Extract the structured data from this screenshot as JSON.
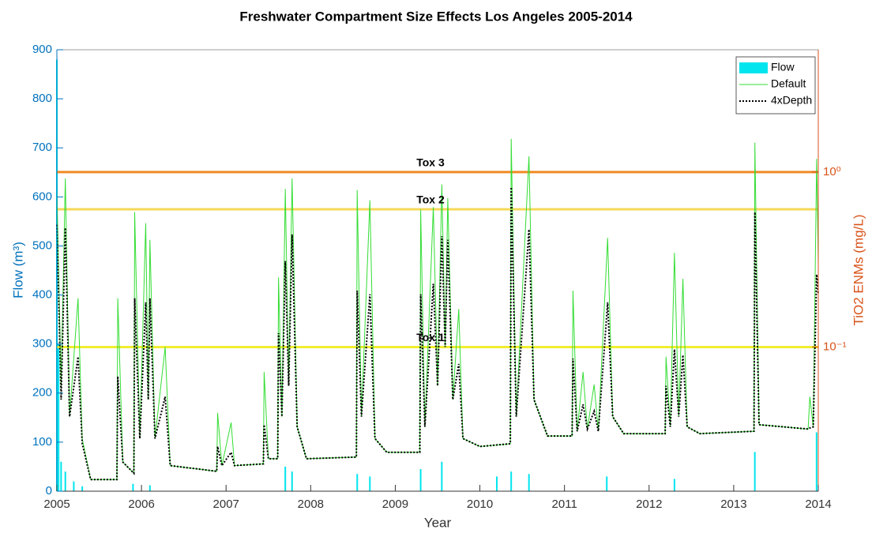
{
  "chart_data": {
    "type": "line",
    "title": "Freshwater Compartment Size Effects Los Angeles 2005-2014",
    "xlabel": "Year",
    "ylabel": "Flow (m³)",
    "y2label": "TiO2 ENMs (mg/L)",
    "xlim": [
      2005,
      2014
    ],
    "xticks": [
      2005,
      2006,
      2007,
      2008,
      2009,
      2010,
      2011,
      2012,
      2013,
      2014
    ],
    "ylim": [
      0,
      900
    ],
    "yticks": [
      0,
      100,
      200,
      300,
      400,
      500,
      600,
      700,
      800,
      900
    ],
    "y2lim": [
      0.015,
      5
    ],
    "y2ticks": [
      {
        "value": 0.1,
        "label": "10⁻¹"
      },
      {
        "value": 1,
        "label": "10⁰"
      }
    ],
    "y2log": true,
    "legend": "northeast",
    "x": [
      2005.0,
      2005.05,
      2005.1,
      2005.15,
      2005.25,
      2005.3,
      2005.4,
      2005.71,
      2005.72,
      2005.78,
      2005.91,
      2005.92,
      2005.98,
      2006.05,
      2006.08,
      2006.1,
      2006.16,
      2006.28,
      2006.34,
      2006.89,
      2006.9,
      2006.95,
      2007.06,
      2007.1,
      2007.44,
      2007.45,
      2007.5,
      2007.61,
      2007.62,
      2007.66,
      2007.7,
      2007.74,
      2007.78,
      2007.84,
      2007.95,
      2008.54,
      2008.55,
      2008.6,
      2008.7,
      2008.76,
      2008.9,
      2009.29,
      2009.3,
      2009.35,
      2009.45,
      2009.5,
      2009.55,
      2009.59,
      2009.62,
      2009.68,
      2009.75,
      2009.8,
      2010.0,
      2010.36,
      2010.37,
      2010.43,
      2010.58,
      2010.64,
      2010.8,
      2011.09,
      2011.1,
      2011.15,
      2011.22,
      2011.27,
      2011.35,
      2011.4,
      2011.51,
      2011.57,
      2011.7,
      2012.19,
      2012.2,
      2012.25,
      2012.3,
      2012.35,
      2012.4,
      2012.45,
      2012.6,
      2013.24,
      2013.25,
      2013.3,
      2013.88,
      2013.9,
      2013.94,
      2013.98,
      2014.0
    ],
    "series": [
      {
        "name": "Flow",
        "color": "#00e5ee",
        "axis": "y",
        "type": "bar",
        "x": [
          2005.0,
          2005.02,
          2005.05,
          2005.1,
          2005.2,
          2005.3,
          2005.9,
          2006.1,
          2007.7,
          2007.78,
          2008.55,
          2008.7,
          2009.3,
          2009.55,
          2010.2,
          2010.37,
          2010.58,
          2011.5,
          2012.3,
          2013.25,
          2013.98
        ],
        "values": [
          880,
          300,
          60,
          40,
          20,
          10,
          15,
          12,
          50,
          40,
          35,
          30,
          45,
          60,
          30,
          40,
          35,
          30,
          25,
          80,
          120
        ]
      },
      {
        "name": "Default",
        "color": "#33dd33",
        "axis": "y2",
        "values": [
          0.8,
          0.06,
          0.92,
          0.04,
          0.19,
          0.03,
          0.0175,
          0.0175,
          0.19,
          0.022,
          0.019,
          0.59,
          0.03,
          0.51,
          0.05,
          0.41,
          0.03,
          0.1,
          0.021,
          0.0195,
          0.042,
          0.021,
          0.037,
          0.021,
          0.0215,
          0.072,
          0.023,
          0.023,
          0.25,
          0.04,
          0.8,
          0.06,
          0.92,
          0.035,
          0.023,
          0.0235,
          0.79,
          0.04,
          0.69,
          0.03,
          0.025,
          0.025,
          0.61,
          0.035,
          0.63,
          0.06,
          0.85,
          0.1,
          0.71,
          0.05,
          0.165,
          0.03,
          0.027,
          0.028,
          1.55,
          0.04,
          1.23,
          0.05,
          0.031,
          0.031,
          0.21,
          0.033,
          0.072,
          0.034,
          0.061,
          0.033,
          0.42,
          0.04,
          0.032,
          0.032,
          0.088,
          0.035,
          0.345,
          0.04,
          0.245,
          0.035,
          0.032,
          0.033,
          1.47,
          0.036,
          0.034,
          0.052,
          0.035,
          1.19,
          0.3
        ]
      },
      {
        "name": "4xDepth",
        "color": "#000000",
        "axis": "y2",
        "dash": "dotted",
        "values": [
          0.5,
          0.05,
          0.48,
          0.04,
          0.088,
          0.028,
          0.0175,
          0.0175,
          0.068,
          0.022,
          0.019,
          0.19,
          0.03,
          0.18,
          0.05,
          0.19,
          0.03,
          0.052,
          0.021,
          0.0195,
          0.027,
          0.021,
          0.025,
          0.021,
          0.0215,
          0.036,
          0.023,
          0.023,
          0.12,
          0.04,
          0.31,
          0.06,
          0.44,
          0.035,
          0.023,
          0.0235,
          0.21,
          0.04,
          0.2,
          0.03,
          0.025,
          0.025,
          0.2,
          0.035,
          0.23,
          0.06,
          0.43,
          0.1,
          0.41,
          0.05,
          0.08,
          0.03,
          0.027,
          0.028,
          0.82,
          0.04,
          0.47,
          0.05,
          0.031,
          0.031,
          0.086,
          0.033,
          0.047,
          0.034,
          0.043,
          0.033,
          0.18,
          0.04,
          0.032,
          0.032,
          0.06,
          0.035,
          0.097,
          0.04,
          0.09,
          0.035,
          0.032,
          0.033,
          0.59,
          0.036,
          0.034,
          0.0345,
          0.035,
          0.26,
          0.2
        ]
      }
    ],
    "reference_lines": [
      {
        "label": "Tox 3",
        "value": 1.0,
        "color": "#f08a24"
      },
      {
        "label": "Tox 2",
        "value": 0.613,
        "color": "#f5d85a"
      },
      {
        "label": "Tox 1",
        "value": 0.1,
        "color": "#f0ee30"
      }
    ]
  }
}
